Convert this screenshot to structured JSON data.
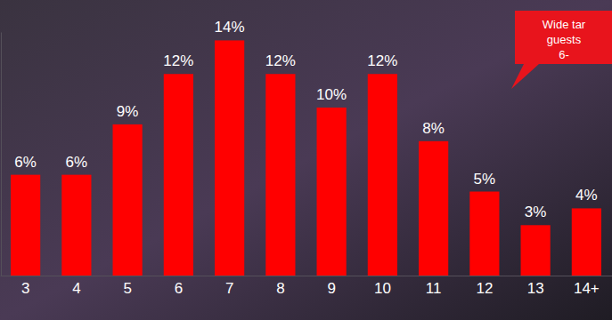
{
  "chart_data": {
    "type": "bar",
    "categories": [
      "3",
      "4",
      "5",
      "6",
      "7",
      "8",
      "9",
      "10",
      "11",
      "12",
      "13",
      "14+"
    ],
    "values": [
      6,
      6,
      9,
      12,
      14,
      12,
      10,
      12,
      8,
      5,
      3,
      4
    ],
    "value_labels": [
      "6%",
      "6%",
      "9%",
      "12%",
      "14%",
      "12%",
      "10%",
      "12%",
      "8%",
      "5%",
      "3%",
      "4%"
    ],
    "color": "#ff0000",
    "ylim": [
      0,
      14.5
    ],
    "data_labels": true,
    "tick_labels": "x",
    "grid": false,
    "annotations": [
      "Wide tar",
      "guests",
      "6-"
    ]
  }
}
